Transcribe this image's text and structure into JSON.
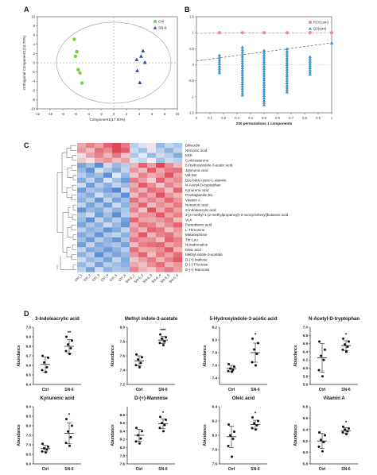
{
  "panel_letters": [
    "A",
    "B",
    "C",
    "D"
  ],
  "chart_data": [
    {
      "panel": "A",
      "type": "scatter",
      "xlabel": "Component1(17.60%)",
      "ylabel": "Orthogonal Component1(13.70%)",
      "xlim": [
        -12,
        10
      ],
      "ylim": [
        -10,
        10
      ],
      "xticks": [
        -12,
        -10,
        -8,
        -6,
        -4,
        -2,
        0,
        2,
        4,
        6,
        8,
        10
      ],
      "yticks": [
        -10,
        -8,
        -6,
        -4,
        -2,
        0,
        2,
        4,
        6,
        8,
        10
      ],
      "legend_position": "top-right",
      "series": [
        {
          "name": "Ctrl",
          "color": "#7ccf3a",
          "marker": "circle",
          "points": [
            [
              -6.2,
              5.1
            ],
            [
              -5.8,
              2.4
            ],
            [
              -6.0,
              1.4
            ],
            [
              -5.6,
              -1.5
            ],
            [
              -5.3,
              -2.2
            ],
            [
              -5.0,
              -4.4
            ]
          ]
        },
        {
          "name": "SN-6",
          "color": "#2f3fa6",
          "marker": "triangle",
          "points": [
            [
              4.6,
              2.6
            ],
            [
              4.3,
              1.4
            ],
            [
              3.6,
              0.7
            ],
            [
              4.9,
              0.1
            ],
            [
              3.7,
              -1.7
            ],
            [
              4.1,
              -4.3
            ]
          ]
        }
      ]
    },
    {
      "panel": "B",
      "type": "scatter",
      "xlabel": "200 permutations 1 components",
      "xlim": [
        0,
        1
      ],
      "ylim": [
        -1.5,
        1.5
      ],
      "xticks": [
        "0",
        "0.1",
        "0.2",
        "0.3",
        "0.4",
        "0.5",
        "0.6",
        "0.7",
        "0.8",
        "0.9",
        "1"
      ],
      "yticks": [
        "1.5",
        "1",
        "0.5",
        "0",
        "-0.5",
        "-1",
        "-1.5"
      ],
      "legend_position": "top-right",
      "r2_intercept": 0.98,
      "q2_intercept": 0.12,
      "q2_original": 0.68,
      "series": [
        {
          "name": "R2Y(cum)",
          "color": "#f08a8a",
          "marker": "circle",
          "x": [
            0.17,
            0.34,
            0.5,
            0.67,
            0.84,
            1.0
          ],
          "y": [
            1.0,
            1.0,
            1.0,
            1.0,
            1.0,
            1.0
          ]
        },
        {
          "name": "Q2(cum)",
          "color": "#3a8ec8",
          "marker": "triangle",
          "columns": [
            {
              "x": 0.17,
              "ymin": -0.25,
              "ymax": 0.3
            },
            {
              "x": 0.34,
              "ymin": -0.95,
              "ymax": 0.55
            },
            {
              "x": 0.5,
              "ymin": -1.25,
              "ymax": 0.45
            },
            {
              "x": 0.67,
              "ymin": -0.85,
              "ymax": 0.5
            },
            {
              "x": 0.84,
              "ymin": -0.3,
              "ymax": 0.25
            },
            {
              "x": 1.0,
              "ymin": 0.68,
              "ymax": 0.68
            }
          ]
        }
      ]
    },
    {
      "panel": "C",
      "type": "heatmap",
      "columns": [
        "Ctrl_1",
        "Ctrl_2",
        "Ctrl_3",
        "Ctrl_4",
        "Ctrl_5",
        "Ctrl_6",
        "SN-6_1",
        "SN-6_2",
        "SN-6_3",
        "SN-6_4",
        "SN-6_5",
        "SN-6_6"
      ],
      "rows": [
        "Biliverdin",
        "Nervonic acid",
        "KKK",
        "Corticosterone",
        "5-Hydroxyindole-3-acetic acid",
        "Jasmonic acid",
        "Val-Ser",
        "Boc-beta-cyano-L-alanine",
        "N-Acetyl-D-tryptophan",
        "Kynurenic acid",
        "Prostaglandin B1",
        "Vitamin A",
        "Nonanoic acid",
        "3-Indoleacrylic acid",
        "3-[4-methyl-1-(2-methylpropanoyl)-3-oxocyclohexyl]butanoic acid",
        "VLK",
        "Pantothenic acid",
        "L-Threonine",
        "Metanephrine",
        "Thr-Leu",
        "Noradrenaline",
        "Oleic acid",
        "Methyl indole-3-acetate",
        "D-(+)-Maltose",
        "D-(-)-Fructose",
        "D-(+)-Mannose"
      ],
      "values": [
        [
          0.8,
          1.2,
          0.9,
          1.5,
          1.8,
          1.3,
          -0.6,
          -0.3,
          0.2,
          -0.9,
          -0.5,
          -0.7
        ],
        [
          1.0,
          0.6,
          1.4,
          1.1,
          1.9,
          1.6,
          -0.4,
          -0.8,
          -0.2,
          -0.6,
          -1.0,
          -0.5
        ],
        [
          0.3,
          0.9,
          1.2,
          0.7,
          1.3,
          0.5,
          -0.7,
          -0.2,
          -0.9,
          -0.4,
          -0.6,
          -1.1
        ],
        [
          0.5,
          0.2,
          0.8,
          1.0,
          0.6,
          0.9,
          -0.3,
          -0.5,
          0.1,
          -0.8,
          -0.4,
          -0.6
        ],
        [
          -1.2,
          -0.8,
          -1.5,
          -0.4,
          -0.9,
          -0.6,
          0.7,
          1.5,
          0.9,
          1.8,
          1.1,
          0.6
        ],
        [
          -0.9,
          -1.4,
          -0.3,
          -0.7,
          -1.1,
          -0.5,
          1.0,
          0.6,
          1.6,
          0.8,
          1.3,
          1.4
        ],
        [
          -0.6,
          -1.0,
          -0.8,
          -1.5,
          -0.2,
          -0.9,
          0.5,
          1.2,
          0.8,
          1.0,
          1.7,
          0.9
        ],
        [
          -1.1,
          -0.5,
          -1.2,
          -0.3,
          -0.8,
          -1.3,
          1.3,
          0.9,
          0.4,
          1.5,
          0.9,
          1.1
        ],
        [
          -0.4,
          -1.3,
          -0.6,
          -1.0,
          -0.5,
          -0.9,
          0.8,
          1.6,
          1.1,
          0.5,
          1.2,
          0.8
        ],
        [
          -1.3,
          -0.7,
          -0.9,
          -1.2,
          -1.6,
          -0.4,
          1.1,
          0.7,
          1.4,
          1.2,
          0.6,
          1.5
        ],
        [
          -0.8,
          -1.1,
          -0.4,
          -0.9,
          -0.7,
          -1.5,
          0.6,
          1.3,
          0.9,
          1.7,
          1.0,
          0.7
        ],
        [
          -1.0,
          -0.6,
          -1.4,
          -0.5,
          -1.2,
          -0.8,
          1.4,
          0.8,
          1.2,
          0.9,
          1.5,
          1.0
        ],
        [
          -0.5,
          -1.2,
          -0.7,
          -1.3,
          -0.4,
          -1.0,
          0.9,
          1.5,
          0.6,
          1.1,
          0.8,
          1.3
        ],
        [
          -1.4,
          -0.9,
          -1.1,
          -0.6,
          -1.0,
          -0.7,
          1.2,
          0.5,
          1.7,
          0.8,
          1.4,
          0.9
        ],
        [
          -0.7,
          -0.4,
          -1.3,
          -0.8,
          -1.5,
          -0.6,
          0.7,
          1.1,
          1.0,
          1.6,
          0.9,
          1.2
        ],
        [
          -0.9,
          -1.5,
          -0.5,
          -1.1,
          -0.6,
          -1.2,
          1.5,
          0.9,
          0.8,
          1.0,
          1.3,
          0.6
        ],
        [
          -1.2,
          -0.7,
          -1.0,
          -0.4,
          -0.9,
          -1.4,
          0.8,
          1.4,
          1.2,
          0.7,
          1.1,
          1.5
        ],
        [
          -0.6,
          -1.0,
          -0.8,
          -1.4,
          -1.1,
          -0.5,
          1.1,
          0.7,
          1.5,
          1.3,
          0.6,
          1.0
        ],
        [
          -1.1,
          -0.8,
          -1.4,
          -0.7,
          -0.5,
          -1.0,
          0.9,
          1.6,
          0.7,
          1.2,
          1.4,
          0.8
        ],
        [
          -0.8,
          -1.3,
          -0.6,
          -1.0,
          -1.4,
          -0.7,
          1.3,
          1.0,
          1.1,
          0.6,
          1.5,
          1.2
        ],
        [
          -1.3,
          -0.5,
          -1.1,
          -0.9,
          -0.7,
          -1.2,
          0.6,
          1.2,
          1.4,
          1.5,
          0.8,
          1.1
        ],
        [
          -0.5,
          -1.1,
          -0.9,
          -1.3,
          -1.0,
          -0.6,
          1.4,
          0.8,
          0.9,
          1.1,
          1.6,
          0.7
        ],
        [
          -1.0,
          -0.6,
          -1.5,
          -0.8,
          -1.2,
          -0.9,
          1.0,
          1.5,
          0.6,
          1.3,
          0.9,
          1.4
        ],
        [
          -0.4,
          -0.9,
          -0.7,
          -1.2,
          -0.5,
          -1.1,
          0.5,
          0.9,
          1.3,
          0.7,
          1.2,
          1.6
        ],
        [
          -0.9,
          -0.5,
          -1.2,
          -0.6,
          -0.8,
          -1.0,
          0.8,
          0.6,
          1.1,
          1.4,
          0.7,
          1.0
        ],
        [
          -0.6,
          -1.2,
          -0.4,
          -1.0,
          -0.7,
          -0.8,
          1.2,
          0.7,
          0.5,
          1.0,
          1.3,
          0.9
        ]
      ]
    },
    {
      "panel": "D",
      "type": "scatter",
      "ylabel": "Abundance",
      "categories": [
        "Ctrl",
        "SN-6"
      ],
      "plots": [
        {
          "title": "3-Indoleacrylic acid",
          "ylim": [
            6.4,
            7.0
          ],
          "yticks": [
            "6.4",
            "6.5",
            "6.6",
            "6.7",
            "6.8",
            "6.9",
            "7.0"
          ],
          "stars": "**",
          "groups": [
            {
              "name": "Ctrl",
              "mean": 6.61,
              "sd": 0.08,
              "values": [
                6.7,
                6.68,
                6.63,
                6.58,
                6.55,
                6.53
              ]
            },
            {
              "name": "SN-6",
              "mean": 6.8,
              "sd": 0.07,
              "values": [
                6.9,
                6.86,
                6.82,
                6.78,
                6.75,
                6.72
              ]
            }
          ]
        },
        {
          "title": "Methyl indole-3-acetate",
          "ylim": [
            7.2,
            8.0
          ],
          "yticks": [
            "7.2",
            "7.4",
            "7.6",
            "7.8",
            "8.0"
          ],
          "stars": "***",
          "groups": [
            {
              "name": "Ctrl",
              "mean": 7.53,
              "sd": 0.07,
              "values": [
                7.62,
                7.58,
                7.55,
                7.5,
                7.47,
                7.44
              ]
            },
            {
              "name": "SN-6",
              "mean": 7.82,
              "sd": 0.05,
              "values": [
                7.9,
                7.86,
                7.84,
                7.8,
                7.78,
                7.75
              ]
            }
          ]
        },
        {
          "title": "5-Hydroxyindole-3-acetic acid",
          "ylim": [
            7.3,
            8.2
          ],
          "yticks": [
            "7.4",
            "7.6",
            "7.8",
            "8.0",
            "8.2"
          ],
          "stars": "*",
          "groups": [
            {
              "name": "Ctrl",
              "mean": 7.55,
              "sd": 0.05,
              "values": [
                7.62,
                7.58,
                7.55,
                7.53,
                7.51,
                7.5
              ]
            },
            {
              "name": "SN-6",
              "mean": 7.8,
              "sd": 0.15,
              "values": [
                8.02,
                7.95,
                7.85,
                7.78,
                7.65,
                7.6
              ]
            }
          ]
        },
        {
          "title": "N-Acetyl-D-tryptophan",
          "ylim": [
            5.6,
            7.0
          ],
          "yticks": [
            "5.6",
            "5.8",
            "6.0",
            "6.2",
            "6.4",
            "6.6",
            "6.8",
            "7.0"
          ],
          "stars": "*",
          "groups": [
            {
              "name": "Ctrl",
              "mean": 6.25,
              "sd": 0.35,
              "values": [
                6.65,
                6.45,
                6.3,
                6.2,
                5.95,
                5.8
              ]
            },
            {
              "name": "SN-6",
              "mean": 6.55,
              "sd": 0.12,
              "values": [
                6.72,
                6.65,
                6.58,
                6.52,
                6.45,
                6.4
              ]
            }
          ]
        },
        {
          "title": "Kynurenic acid",
          "ylim": [
            6.0,
            9.0
          ],
          "yticks": [
            "6.0",
            "6.5",
            "7.0",
            "7.5",
            "8.0",
            "8.5",
            "9.0"
          ],
          "stars": "*",
          "groups": [
            {
              "name": "Ctrl",
              "mean": 6.8,
              "sd": 0.17,
              "values": [
                7.05,
                6.9,
                6.82,
                6.75,
                6.65,
                6.6
              ]
            },
            {
              "name": "SN-6",
              "mean": 7.6,
              "sd": 0.55,
              "values": [
                8.35,
                8.0,
                7.7,
                7.4,
                7.1,
                6.95
              ]
            }
          ]
        },
        {
          "title": "D-(+)-Mannose",
          "ylim": [
            7.6,
            9.0
          ],
          "yticks": [
            "7.6",
            "7.8",
            "8.0",
            "8.2",
            "8.4",
            "8.6",
            "8.8"
          ],
          "stars": "*",
          "groups": [
            {
              "name": "Ctrl",
              "mean": 8.3,
              "sd": 0.15,
              "values": [
                8.48,
                8.4,
                8.3,
                8.22,
                8.15,
                8.1
              ]
            },
            {
              "name": "SN-6",
              "mean": 8.58,
              "sd": 0.12,
              "values": [
                8.75,
                8.68,
                8.6,
                8.55,
                8.48,
                8.4
              ]
            }
          ]
        },
        {
          "title": "Oleic acid",
          "ylim": [
            7.6,
            8.4
          ],
          "yticks": [
            "7.6",
            "7.8",
            "8.0",
            "8.2",
            "8.4"
          ],
          "stars": "*",
          "groups": [
            {
              "name": "Ctrl",
              "mean": 7.98,
              "sd": 0.15,
              "values": [
                8.15,
                8.05,
                8.0,
                7.95,
                7.85,
                7.7
              ]
            },
            {
              "name": "SN-6",
              "mean": 8.15,
              "sd": 0.06,
              "values": [
                8.25,
                8.2,
                8.17,
                8.14,
                8.1,
                8.08
              ]
            }
          ]
        },
        {
          "title": "Vitamin A",
          "ylim": [
            5.8,
            6.8
          ],
          "yticks": [
            "5.8",
            "6.0",
            "6.2",
            "6.4",
            "6.6",
            "6.8"
          ],
          "stars": "*",
          "groups": [
            {
              "name": "Ctrl",
              "mean": 6.2,
              "sd": 0.13,
              "values": [
                6.35,
                6.3,
                6.22,
                6.18,
                6.1,
                6.02
              ]
            },
            {
              "name": "SN-6",
              "mean": 6.38,
              "sd": 0.05,
              "values": [
                6.45,
                6.42,
                6.4,
                6.37,
                6.35,
                6.32
              ]
            }
          ]
        }
      ]
    }
  ]
}
